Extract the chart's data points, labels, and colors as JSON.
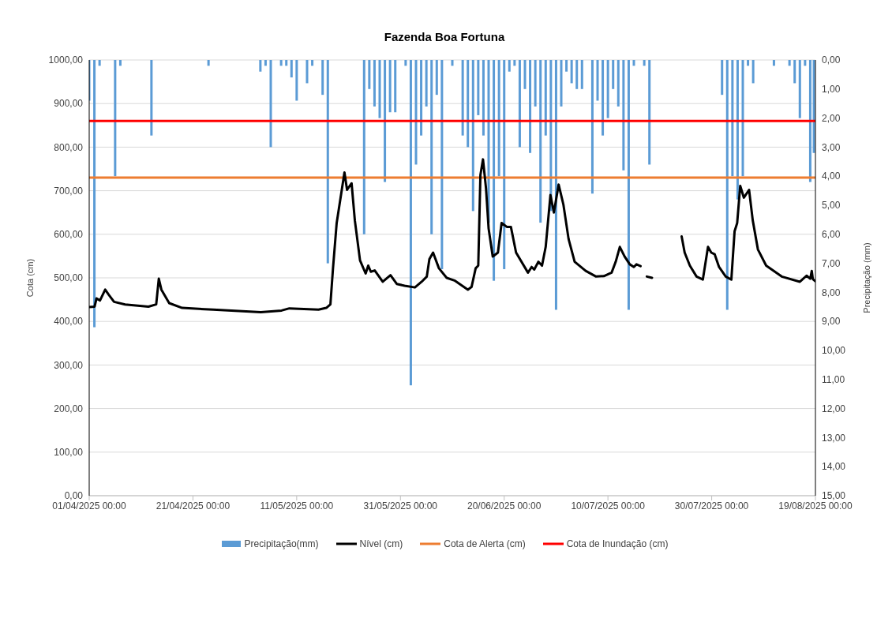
{
  "chart_data": {
    "type": "bar",
    "title": "Fazenda Boa Fortuna",
    "ylabel": "Cota (cm)",
    "y2label": "Precipitação (mm)",
    "xlim": [
      "2025-04-01",
      "2025-08-19"
    ],
    "xticks": [
      {
        "value": "2025-04-01",
        "label": "01/04/2025 00:00"
      },
      {
        "value": "2025-04-21",
        "label": "21/04/2025 00:00"
      },
      {
        "value": "2025-05-11",
        "label": "11/05/2025 00:00"
      },
      {
        "value": "2025-05-31",
        "label": "31/05/2025 00:00"
      },
      {
        "value": "2025-06-20",
        "label": "20/06/2025 00:00"
      },
      {
        "value": "2025-07-10",
        "label": "10/07/2025 00:00"
      },
      {
        "value": "2025-07-30",
        "label": "30/07/2025 00:00"
      },
      {
        "value": "2025-08-19",
        "label": "19/08/2025 00:00"
      }
    ],
    "ylim": [
      0,
      1000
    ],
    "yticks": [
      {
        "value": 0,
        "label": "0,00"
      },
      {
        "value": 100,
        "label": "100,00"
      },
      {
        "value": 200,
        "label": "200,00"
      },
      {
        "value": 300,
        "label": "300,00"
      },
      {
        "value": 400,
        "label": "400,00"
      },
      {
        "value": 500,
        "label": "500,00"
      },
      {
        "value": 600,
        "label": "600,00"
      },
      {
        "value": 700,
        "label": "700,00"
      },
      {
        "value": 800,
        "label": "800,00"
      },
      {
        "value": 900,
        "label": "900,00"
      },
      {
        "value": 1000,
        "label": "1000,00"
      }
    ],
    "y2lim": [
      15,
      0
    ],
    "y2ticks": [
      {
        "value": 0,
        "label": "0,00"
      },
      {
        "value": 1,
        "label": "1,00"
      },
      {
        "value": 2,
        "label": "2,00"
      },
      {
        "value": 3,
        "label": "3,00"
      },
      {
        "value": 4,
        "label": "4,00"
      },
      {
        "value": 5,
        "label": "5,00"
      },
      {
        "value": 6,
        "label": "6,00"
      },
      {
        "value": 7,
        "label": "7,00"
      },
      {
        "value": 8,
        "label": "8,00"
      },
      {
        "value": 9,
        "label": "9,00"
      },
      {
        "value": 10,
        "label": "10,00"
      },
      {
        "value": 11,
        "label": "11,00"
      },
      {
        "value": 12,
        "label": "12,00"
      },
      {
        "value": 13,
        "label": "13,00"
      },
      {
        "value": 14,
        "label": "14,00"
      },
      {
        "value": 15,
        "label": "15,00"
      }
    ],
    "grid": "y",
    "legend": "bottom",
    "marker": "none",
    "series": [
      {
        "name": "Precipitação(mm)",
        "axis": "y2",
        "color": "#5b9bd5",
        "x": [
          "2025-04-01",
          "2025-04-02",
          "2025-04-03",
          "2025-04-06",
          "2025-04-07",
          "2025-04-13",
          "2025-04-24",
          "2025-05-04",
          "2025-05-05",
          "2025-05-06",
          "2025-05-08",
          "2025-05-09",
          "2025-05-10",
          "2025-05-11",
          "2025-05-13",
          "2025-05-14",
          "2025-05-16",
          "2025-05-17",
          "2025-05-24",
          "2025-05-25",
          "2025-05-26",
          "2025-05-27",
          "2025-05-28",
          "2025-05-29",
          "2025-05-30",
          "2025-06-01",
          "2025-06-02",
          "2025-06-03",
          "2025-06-04",
          "2025-06-05",
          "2025-06-06",
          "2025-06-07",
          "2025-06-08",
          "2025-06-10",
          "2025-06-12",
          "2025-06-13",
          "2025-06-14",
          "2025-06-15",
          "2025-06-16",
          "2025-06-17",
          "2025-06-18",
          "2025-06-19",
          "2025-06-20",
          "2025-06-21",
          "2025-06-22",
          "2025-06-23",
          "2025-06-24",
          "2025-06-25",
          "2025-06-26",
          "2025-06-27",
          "2025-06-28",
          "2025-06-29",
          "2025-06-30",
          "2025-07-01",
          "2025-07-02",
          "2025-07-03",
          "2025-07-04",
          "2025-07-05",
          "2025-07-07",
          "2025-07-08",
          "2025-07-09",
          "2025-07-10",
          "2025-07-11",
          "2025-07-12",
          "2025-07-13",
          "2025-07-14",
          "2025-07-15",
          "2025-07-17",
          "2025-07-18",
          "2025-08-01",
          "2025-08-02",
          "2025-08-03",
          "2025-08-04",
          "2025-08-05",
          "2025-08-06",
          "2025-08-07",
          "2025-08-11",
          "2025-08-14",
          "2025-08-15",
          "2025-08-16",
          "2025-08-17",
          "2025-08-18",
          "2025-08-18T17:00"
        ],
        "values": [
          1.4,
          9.2,
          0.2,
          4.0,
          0.2,
          2.6,
          0.2,
          0.4,
          0.2,
          3.0,
          0.2,
          0.2,
          0.6,
          1.4,
          0.8,
          0.2,
          1.2,
          7.0,
          6.0,
          1.0,
          1.6,
          2.0,
          4.2,
          1.8,
          1.8,
          0.2,
          11.2,
          3.6,
          2.6,
          1.6,
          6.0,
          1.2,
          7.2,
          0.2,
          2.6,
          3.0,
          5.2,
          1.9,
          2.6,
          5.6,
          7.6,
          4.0,
          7.2,
          0.4,
          0.2,
          3.0,
          1.0,
          3.2,
          1.6,
          5.6,
          2.6,
          5.2,
          8.6,
          1.6,
          0.4,
          0.8,
          1.0,
          1.0,
          4.6,
          1.4,
          2.6,
          2.0,
          1.0,
          1.6,
          3.8,
          8.6,
          0.2,
          0.2,
          3.6,
          1.2,
          8.6,
          4.0,
          4.8,
          4.0,
          0.2,
          0.8,
          0.2,
          0.2,
          0.8,
          2.0,
          0.2,
          4.2,
          3.2
        ]
      },
      {
        "name": "Nível (cm)",
        "type": "line",
        "color": "#000000",
        "x": [
          "2025-04-01T00:00",
          "2025-04-02T01:00",
          "2025-04-02T10:00",
          "2025-04-03T02:00",
          "2025-04-04T02:00",
          "2025-04-04T19:00",
          "2025-04-05T19:00",
          "2025-04-07T22:00",
          "2025-04-12T10:00",
          "2025-04-13T22:00",
          "2025-04-14T10:00",
          "2025-04-14T22:00",
          "2025-04-16T10:00",
          "2025-04-18T22:00",
          "2025-04-24T22:00",
          "2025-05-04T02:00",
          "2025-05-08T02:00",
          "2025-05-09T14:00",
          "2025-05-15T05:00",
          "2025-05-16T17:00",
          "2025-05-17T12:00",
          "2025-05-18T00:00",
          "2025-05-18T17:00",
          "2025-05-19T12:00",
          "2025-05-20T05:00",
          "2025-05-20T17:00",
          "2025-05-21T14:00",
          "2025-05-22T05:00",
          "2025-05-23T05:00",
          "2025-05-24T07:00",
          "2025-05-24T19:00",
          "2025-05-25T07:00",
          "2025-05-26T01:00",
          "2025-05-27T14:00",
          "2025-05-29T02:00",
          "2025-05-30T07:00",
          "2025-05-31T19:00",
          "2025-06-02T19:00",
          "2025-06-04T02:00",
          "2025-06-05T02:00",
          "2025-06-05T14:00",
          "2025-06-06T07:00",
          "2025-06-07T10:00",
          "2025-06-08T22:00",
          "2025-06-10T10:00",
          "2025-06-13T00:00",
          "2025-06-13T17:00",
          "2025-06-14T12:00",
          "2025-06-15T00:00",
          "2025-06-15T10:00",
          "2025-06-15T22:00",
          "2025-06-16T12:00",
          "2025-06-17T00:00",
          "2025-06-17T19:00",
          "2025-06-18T19:00",
          "2025-06-19T12:00",
          "2025-06-20T12:00",
          "2025-06-21T07:00",
          "2025-06-22T07:00",
          "2025-06-24T14:00",
          "2025-06-25T07:00",
          "2025-06-25T19:00",
          "2025-06-26T14:00",
          "2025-06-27T07:00",
          "2025-06-28T00:00",
          "2025-06-28T22:00",
          "2025-06-29T14:00",
          "2025-06-30T12:00",
          "2025-07-01T10:00",
          "2025-07-02T10:00",
          "2025-07-03T14:00",
          "2025-07-05T17:00",
          "2025-07-07T17:00",
          "2025-07-09T05:00",
          "2025-07-10T17:00",
          "2025-07-11T12:00",
          "2025-07-12T07:00",
          "2025-07-13T05:00",
          "2025-07-14T05:00",
          "2025-07-15T00:00",
          "2025-07-15T12:00",
          "2025-07-16T07:00",
          "2025-07-17T00:00",
          "2025-07-17T12:00",
          "2025-07-18T12:00",
          "2025-07-20T00:00",
          "2025-07-24T05:00",
          "2025-07-24T19:00",
          "2025-07-25T19:00",
          "2025-07-27T02:00",
          "2025-07-28T07:00",
          "2025-07-29T07:00",
          "2025-07-29T22:00",
          "2025-07-30T14:00",
          "2025-07-31T10:00",
          "2025-08-01T17:00",
          "2025-08-02T19:00",
          "2025-08-03T10:00",
          "2025-08-03T22:00",
          "2025-08-04T12:00",
          "2025-08-05T05:00",
          "2025-08-06T05:00",
          "2025-08-06T22:00",
          "2025-08-07T22:00",
          "2025-08-09T12:00",
          "2025-08-12T12:00",
          "2025-08-16T00:00",
          "2025-08-17T07:00",
          "2025-08-18T00:00",
          "2025-08-18T07:00",
          "2025-08-18T12:00",
          "2025-08-19T00:00"
        ],
        "values": [
          433,
          434,
          453,
          448,
          473,
          461,
          445,
          439,
          434,
          439,
          498,
          473,
          442,
          431,
          427,
          421,
          425,
          430,
          427,
          431,
          439,
          522,
          626,
          687,
          742,
          702,
          717,
          632,
          540,
          510,
          528,
          514,
          517,
          491,
          506,
          486,
          482,
          478,
          491,
          503,
          543,
          558,
          522,
          500,
          494,
          473,
          479,
          522,
          528,
          736,
          772,
          705,
          613,
          549,
          558,
          626,
          617,
          617,
          558,
          512,
          525,
          519,
          537,
          528,
          571,
          690,
          650,
          714,
          668,
          589,
          537,
          516,
          503,
          504,
          512,
          537,
          571,
          549,
          531,
          525,
          531,
          527,
          null,
          503,
          500,
          null,
          595,
          558,
          528,
          503,
          496,
          571,
          558,
          554,
          525,
          503,
          496,
          607,
          626,
          711,
          684,
          702,
          632,
          565,
          528,
          503,
          491,
          505,
          498,
          516,
          497,
          492
        ]
      }
    ],
    "ref_lines": [
      {
        "axis": "y",
        "value": 730,
        "label": "Cota de Alerta (cm)",
        "color": "#ed7d31"
      },
      {
        "axis": "y",
        "value": 860,
        "label": "Cota de Inundação (cm)",
        "color": "#ff0000"
      }
    ]
  }
}
